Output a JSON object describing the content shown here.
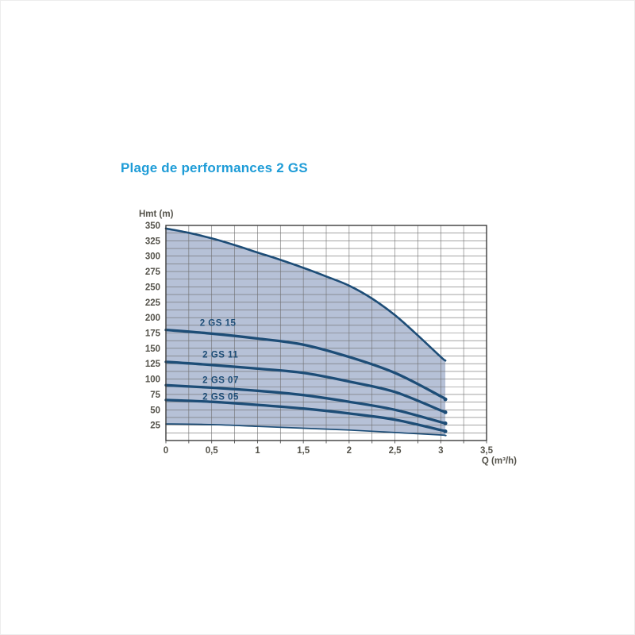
{
  "title": "Plage de performances 2 GS",
  "chart_data": {
    "type": "area",
    "title": "Plage de performances 2 GS",
    "xlabel": "Q (m³/h)",
    "ylabel": "Hmt (m)",
    "x_range": [
      0,
      3.5
    ],
    "y_range": [
      0,
      350
    ],
    "grid": true,
    "legend": "inline-labels",
    "x_tick_labels": [
      "0",
      "0,5",
      "1",
      "1,5",
      "2",
      "2,5",
      "3",
      "3,5"
    ],
    "x_tick_values": [
      0,
      0.5,
      1,
      1.5,
      2,
      2.5,
      3,
      3.5
    ],
    "y_tick_values": [
      350,
      325,
      300,
      275,
      250,
      225,
      200,
      175,
      150,
      125,
      100,
      75,
      50,
      25
    ],
    "x_minor_step": 0.25,
    "y_minor_step": 12.5,
    "envelope_upper": {
      "x": [
        0,
        0.25,
        0.5,
        0.75,
        1,
        1.25,
        1.5,
        1.75,
        2,
        2.25,
        2.5,
        2.75,
        3,
        3.05
      ],
      "y": [
        345,
        338,
        329,
        318,
        306,
        294,
        281,
        267,
        252,
        231,
        204,
        171,
        136,
        130
      ]
    },
    "envelope_lower": {
      "x": [
        0,
        0.5,
        1,
        1.5,
        2,
        2.5,
        3,
        3.05
      ],
      "y": [
        27,
        26,
        23,
        20,
        17,
        13,
        9,
        8
      ]
    },
    "series": [
      {
        "name": "2 GS 15",
        "x": [
          0,
          0.5,
          1,
          1.5,
          2,
          2.5,
          3,
          3.05
        ],
        "y": [
          180,
          174,
          166,
          156,
          136,
          110,
          72,
          67
        ],
        "label_at": {
          "x": 0.37,
          "y": 192
        }
      },
      {
        "name": "2 GS 11",
        "x": [
          0,
          0.5,
          1,
          1.5,
          2,
          2.5,
          3,
          3.05
        ],
        "y": [
          128,
          123,
          117,
          110,
          96,
          79,
          49,
          46
        ],
        "label_at": {
          "x": 0.4,
          "y": 140
        }
      },
      {
        "name": "2 GS 07",
        "x": [
          0,
          0.5,
          1,
          1.5,
          2,
          2.5,
          3,
          3.05
        ],
        "y": [
          90,
          86,
          81,
          74,
          63,
          50,
          30,
          28
        ],
        "label_at": {
          "x": 0.4,
          "y": 99
        }
      },
      {
        "name": "2 GS 05",
        "x": [
          0,
          0.5,
          1,
          1.5,
          2,
          2.5,
          3,
          3.05
        ],
        "y": [
          66,
          63,
          58,
          52,
          44,
          34,
          17,
          15
        ],
        "label_at": {
          "x": 0.4,
          "y": 72
        }
      }
    ],
    "colors": {
      "title": "#1e9cd7",
      "curve": "#1d4d77",
      "fill": "#b6c1d7",
      "grid": "#6e6e6e",
      "frame": "#3c3c3c",
      "tick_text": "#54524a"
    }
  }
}
